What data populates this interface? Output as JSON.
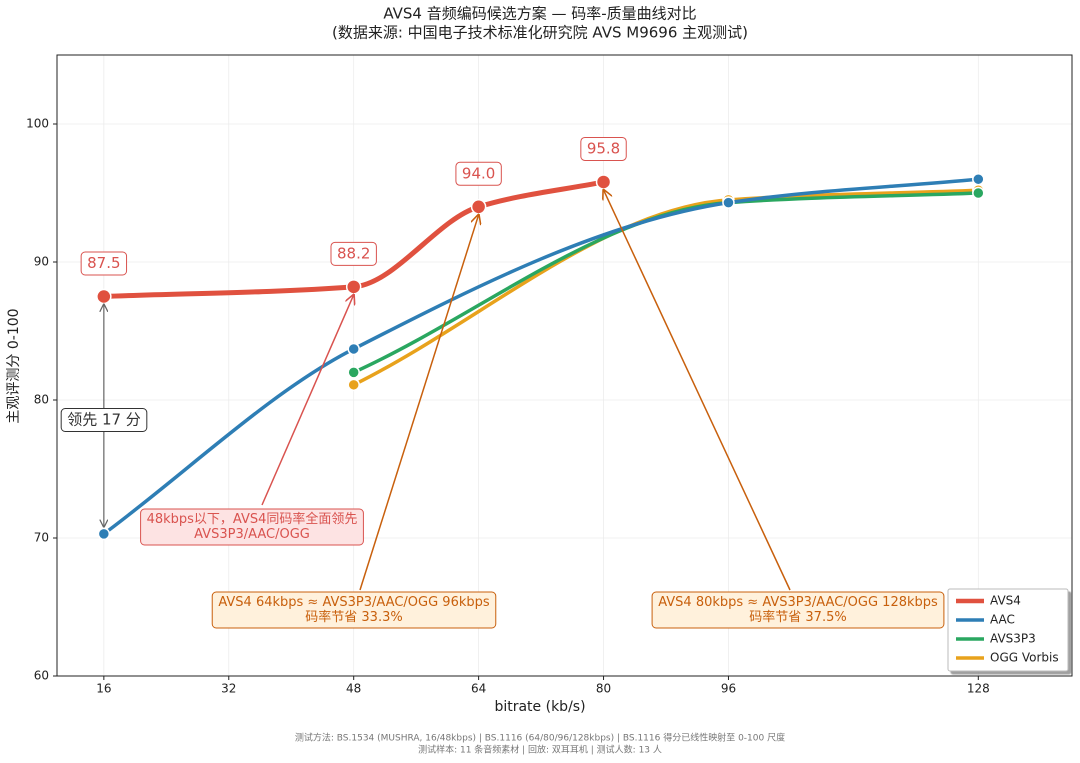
{
  "chart_data": {
    "type": "line",
    "title": "AVS4 音频编码候选方案 — 码率-质量曲线对比",
    "subtitle": "(数据来源: 中国电子技术标准化研究院 AVS M9696 主观测试)",
    "x_label": "bitrate (kb/s)",
    "y_label": "主观评测分 0-100",
    "xlim": [
      10,
      140
    ],
    "xticks": [
      16,
      32,
      48,
      64,
      80,
      96,
      128
    ],
    "ylim": [
      60,
      105
    ],
    "yticks": [
      60,
      70,
      80,
      90,
      100
    ],
    "grid": true,
    "legend": "lower right",
    "series": [
      {
        "name": "AVS4",
        "color": "#e0513f",
        "x": [
          16,
          48,
          64,
          80
        ],
        "values": [
          87.5,
          88.2,
          94.0,
          95.8
        ],
        "value_labels": [
          "87.5",
          "88.2",
          "94.0",
          "95.8"
        ]
      },
      {
        "name": "AAC",
        "color": "#2e7eb5",
        "x": [
          16,
          48,
          96,
          128
        ],
        "values": [
          70.3,
          83.7,
          94.3,
          96.0
        ]
      },
      {
        "name": "AVS3P3",
        "color": "#2aa760",
        "x": [
          48,
          96,
          128
        ],
        "values": [
          82.0,
          94.3,
          95.0
        ]
      },
      {
        "name": "OGG Vorbis",
        "color": "#e8a21c",
        "x": [
          48,
          96,
          128
        ],
        "values": [
          81.1,
          94.5,
          95.2
        ]
      }
    ],
    "annotations": [
      {
        "lines": [
          "领先 17 分"
        ]
      },
      {
        "lines": [
          "48kbps以下，AVS4同码率全面领先",
          "AVS3P3/AAC/OGG"
        ]
      },
      {
        "lines": [
          "AVS4 64kbps ≈ AVS3P3/AAC/OGG 96kbps",
          "码率节省 33.3%"
        ]
      },
      {
        "lines": [
          "AVS4 80kbps ≈ AVS3P3/AAC/OGG 128kbps",
          "码率节省 37.5%"
        ]
      }
    ],
    "footnotes": [
      "测试方法: BS.1534 (MUSHRA, 16/48kbps)  |  BS.1116 (64/80/96/128kbps)  |  BS.1116 得分已线性映射至 0-100 尺度",
      "测试样本: 11 条音频素材  |  回放: 双耳耳机  |  测试人数: 13 人"
    ]
  }
}
